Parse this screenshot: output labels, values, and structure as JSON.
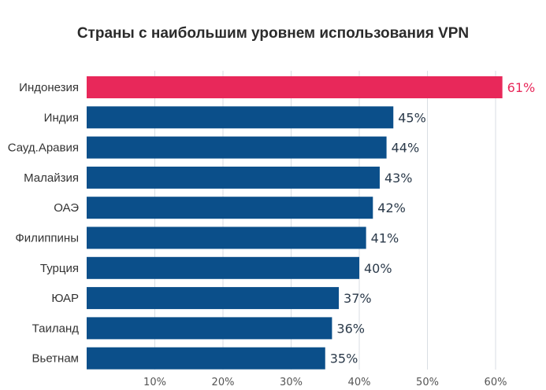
{
  "chart_data": {
    "type": "bar",
    "orientation": "horizontal",
    "title": "Страны с наибольшим уровнем использования VPN",
    "categories": [
      "Индонезия",
      "Индия",
      "Сауд.Аравия",
      "Малайзия",
      "ОАЭ",
      "Филиппины",
      "Турция",
      "ЮАР",
      "Таиланд",
      "Вьетнам"
    ],
    "values": [
      61,
      45,
      44,
      43,
      42,
      41,
      40,
      37,
      36,
      35
    ],
    "value_labels": [
      "61%",
      "45%",
      "44%",
      "43%",
      "42%",
      "41%",
      "40%",
      "37%",
      "36%",
      "35%"
    ],
    "xlim": [
      0,
      65
    ],
    "x_ticks": [
      10,
      20,
      30,
      40,
      50,
      60
    ],
    "x_tick_labels": [
      "10%",
      "20%",
      "30%",
      "40%",
      "50%",
      "60%"
    ],
    "grid": true,
    "colors": {
      "highlight": "#E8285A",
      "default": "#0B4F8A",
      "value_text": "#2b3a4a",
      "highlight_text": "#E8285A",
      "grid": "#d9dee3"
    }
  }
}
